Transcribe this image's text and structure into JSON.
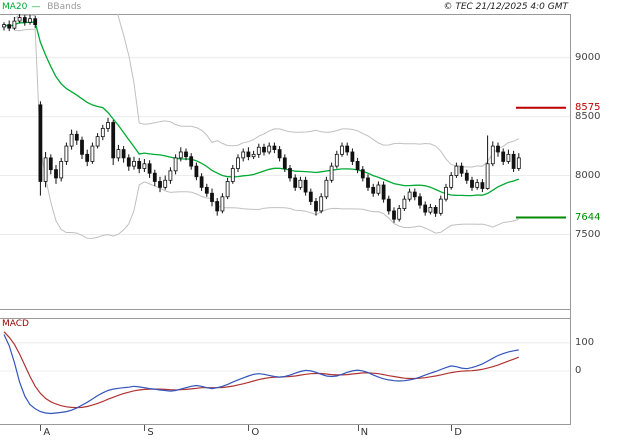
{
  "header": {
    "legend_ma": "MA20",
    "legend_dash": "—",
    "legend_bbands": "BBands",
    "copyright": "© TEC 21/12/2025 4:0 GMT"
  },
  "chart_data": {
    "type": "candlestick",
    "candle_format": [
      "open",
      "high",
      "low",
      "close"
    ],
    "price_axis": {
      "ticks": [
        9000,
        8500,
        8000,
        7500
      ],
      "range": [
        6860,
        9370
      ]
    },
    "x_axis": {
      "months": [
        {
          "label": "A",
          "index": 7
        },
        {
          "label": "S",
          "index": 27
        },
        {
          "label": "O",
          "index": 47
        },
        {
          "label": "N",
          "index": 68
        },
        {
          "label": "D",
          "index": 86
        }
      ]
    },
    "levels": [
      {
        "label": "8575",
        "value": 8575,
        "color": "#bb0000"
      },
      {
        "label": "7644",
        "value": 7644,
        "color": "#008800"
      }
    ],
    "overlays": {
      "ma_window": 20,
      "bollinger_k": 2
    },
    "colors": {
      "ma": "#00aa33",
      "bands": "#c0c0c0",
      "bands_label": "#999999",
      "candle": "#111111",
      "macd": "#3355bb",
      "signal": "#b03333",
      "macd_label": "#990000",
      "grid": "#ececec",
      "border": "#999999",
      "axis_text": "#444444"
    },
    "candles": [
      [
        9260,
        9300,
        9230,
        9280
      ],
      [
        9280,
        9315,
        9225,
        9250
      ],
      [
        9250,
        9345,
        9235,
        9310
      ],
      [
        9310,
        9370,
        9290,
        9340
      ],
      [
        9340,
        9360,
        9270,
        9300
      ],
      [
        9300,
        9365,
        9280,
        9330
      ],
      [
        9330,
        9355,
        9250,
        9280
      ],
      [
        8600,
        8630,
        7830,
        7950
      ],
      [
        7950,
        8200,
        7900,
        8150
      ],
      [
        8150,
        8180,
        8010,
        8050
      ],
      [
        8050,
        8090,
        7930,
        7980
      ],
      [
        7980,
        8150,
        7950,
        8120
      ],
      [
        8120,
        8280,
        8090,
        8250
      ],
      [
        8250,
        8390,
        8220,
        8350
      ],
      [
        8350,
        8380,
        8260,
        8300
      ],
      [
        8300,
        8330,
        8140,
        8180
      ],
      [
        8180,
        8220,
        8080,
        8120
      ],
      [
        8120,
        8280,
        8100,
        8250
      ],
      [
        8250,
        8360,
        8230,
        8330
      ],
      [
        8330,
        8430,
        8300,
        8400
      ],
      [
        8400,
        8490,
        8370,
        8450
      ],
      [
        8450,
        8470,
        8090,
        8150
      ],
      [
        8150,
        8260,
        8120,
        8220
      ],
      [
        8220,
        8250,
        8110,
        8150
      ],
      [
        8150,
        8180,
        8040,
        8080
      ],
      [
        8080,
        8160,
        8050,
        8120
      ],
      [
        8120,
        8150,
        8020,
        8060
      ],
      [
        8060,
        8140,
        8030,
        8100
      ],
      [
        8100,
        8130,
        7980,
        8020
      ],
      [
        8020,
        8050,
        7910,
        7950
      ],
      [
        7950,
        7990,
        7860,
        7900
      ],
      [
        7900,
        8000,
        7880,
        7960
      ],
      [
        7960,
        8070,
        7930,
        8040
      ],
      [
        8040,
        8180,
        8010,
        8150
      ],
      [
        8150,
        8240,
        8120,
        8200
      ],
      [
        8200,
        8230,
        8130,
        8160
      ],
      [
        8160,
        8190,
        8050,
        8080
      ],
      [
        8080,
        8110,
        7960,
        7990
      ],
      [
        7990,
        8020,
        7870,
        7900
      ],
      [
        7900,
        7930,
        7820,
        7850
      ],
      [
        7850,
        7890,
        7740,
        7780
      ],
      [
        7780,
        7810,
        7660,
        7700
      ],
      [
        7700,
        7850,
        7680,
        7820
      ],
      [
        7820,
        7980,
        7800,
        7950
      ],
      [
        7950,
        8090,
        7930,
        8060
      ],
      [
        8060,
        8180,
        8030,
        8150
      ],
      [
        8150,
        8230,
        8120,
        8200
      ],
      [
        8200,
        8240,
        8130,
        8160
      ],
      [
        8160,
        8210,
        8140,
        8180
      ],
      [
        8180,
        8270,
        8150,
        8240
      ],
      [
        8240,
        8270,
        8170,
        8200
      ],
      [
        8200,
        8280,
        8180,
        8250
      ],
      [
        8250,
        8280,
        8190,
        8220
      ],
      [
        8220,
        8250,
        8120,
        8150
      ],
      [
        8150,
        8180,
        8030,
        8060
      ],
      [
        8060,
        8090,
        7950,
        7980
      ],
      [
        7980,
        8010,
        7870,
        7900
      ],
      [
        7900,
        7990,
        7880,
        7960
      ],
      [
        7960,
        7990,
        7830,
        7860
      ],
      [
        7860,
        7890,
        7750,
        7780
      ],
      [
        7780,
        7810,
        7660,
        7700
      ],
      [
        7700,
        7850,
        7680,
        7820
      ],
      [
        7820,
        7990,
        7800,
        7960
      ],
      [
        7960,
        8110,
        7940,
        8080
      ],
      [
        8080,
        8210,
        8060,
        8180
      ],
      [
        8180,
        8280,
        8160,
        8250
      ],
      [
        8250,
        8280,
        8170,
        8200
      ],
      [
        8200,
        8230,
        8090,
        8120
      ],
      [
        8120,
        8150,
        8020,
        8050
      ],
      [
        8050,
        8080,
        7950,
        7980
      ],
      [
        7980,
        8010,
        7870,
        7900
      ],
      [
        7900,
        7930,
        7820,
        7850
      ],
      [
        7850,
        7950,
        7830,
        7920
      ],
      [
        7920,
        7950,
        7770,
        7800
      ],
      [
        7800,
        7830,
        7670,
        7700
      ],
      [
        7700,
        7730,
        7600,
        7630
      ],
      [
        7630,
        7750,
        7610,
        7720
      ],
      [
        7720,
        7830,
        7700,
        7800
      ],
      [
        7800,
        7890,
        7780,
        7860
      ],
      [
        7860,
        7890,
        7790,
        7820
      ],
      [
        7820,
        7850,
        7720,
        7750
      ],
      [
        7750,
        7780,
        7660,
        7690
      ],
      [
        7690,
        7760,
        7670,
        7730
      ],
      [
        7730,
        7750,
        7650,
        7680
      ],
      [
        7680,
        7830,
        7660,
        7800
      ],
      [
        7800,
        7930,
        7780,
        7900
      ],
      [
        7900,
        8030,
        7880,
        8000
      ],
      [
        8000,
        8110,
        7980,
        8080
      ],
      [
        8080,
        8110,
        7990,
        8020
      ],
      [
        8020,
        8050,
        7930,
        7960
      ],
      [
        7960,
        7990,
        7870,
        7900
      ],
      [
        7900,
        7970,
        7880,
        7940
      ],
      [
        7940,
        7970,
        7860,
        7890
      ],
      [
        7890,
        8340,
        7880,
        8100
      ],
      [
        8100,
        8290,
        8080,
        8250
      ],
      [
        8250,
        8280,
        8160,
        8200
      ],
      [
        8200,
        8230,
        8090,
        8120
      ],
      [
        8120,
        8220,
        8100,
        8180
      ],
      [
        8180,
        8210,
        8030,
        8060
      ],
      [
        8060,
        8190,
        8040,
        8150
      ]
    ],
    "macd": {
      "label": "MACD",
      "ticks": [
        100,
        0
      ],
      "range": [
        -193,
        189
      ],
      "macd_line": [
        130,
        90,
        30,
        -40,
        -90,
        -120,
        -135,
        -145,
        -150,
        -152,
        -150,
        -148,
        -145,
        -140,
        -132,
        -122,
        -112,
        -100,
        -88,
        -78,
        -70,
        -65,
        -62,
        -60,
        -58,
        -55,
        -57,
        -60,
        -63,
        -65,
        -68,
        -70,
        -72,
        -70,
        -65,
        -60,
        -55,
        -52,
        -55,
        -60,
        -63,
        -60,
        -55,
        -48,
        -40,
        -32,
        -25,
        -18,
        -12,
        -10,
        -12,
        -16,
        -20,
        -22,
        -20,
        -15,
        -8,
        -2,
        2,
        0,
        -5,
        -12,
        -18,
        -20,
        -18,
        -12,
        -5,
        0,
        3,
        0,
        -6,
        -14,
        -22,
        -28,
        -32,
        -35,
        -36,
        -35,
        -32,
        -28,
        -22,
        -15,
        -8,
        -2,
        5,
        12,
        18,
        15,
        10,
        8,
        12,
        18,
        25,
        35,
        45,
        55,
        62,
        68,
        72,
        75
      ],
      "signal_line": [
        140,
        120,
        95,
        60,
        20,
        -20,
        -55,
        -80,
        -98,
        -110,
        -118,
        -124,
        -128,
        -130,
        -131,
        -130,
        -127,
        -122,
        -116,
        -109,
        -101,
        -94,
        -87,
        -81,
        -76,
        -71,
        -68,
        -66,
        -65,
        -65,
        -65,
        -66,
        -67,
        -68,
        -67,
        -66,
        -64,
        -62,
        -60,
        -60,
        -60,
        -60,
        -59,
        -57,
        -54,
        -50,
        -46,
        -41,
        -36,
        -31,
        -27,
        -24,
        -22,
        -22,
        -21,
        -20,
        -18,
        -15,
        -12,
        -10,
        -9,
        -9,
        -11,
        -13,
        -14,
        -14,
        -13,
        -11,
        -9,
        -7,
        -7,
        -8,
        -10,
        -13,
        -17,
        -20,
        -23,
        -26,
        -27,
        -27,
        -26,
        -24,
        -21,
        -18,
        -14,
        -10,
        -6,
        -3,
        -1,
        0,
        1,
        3,
        6,
        10,
        15,
        21,
        28,
        35,
        42,
        49
      ]
    }
  }
}
